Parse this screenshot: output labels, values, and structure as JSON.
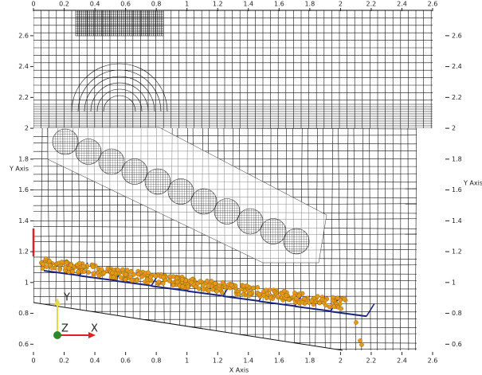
{
  "chart_data": {
    "type": "mesh",
    "xlabel": "X Axis",
    "ylabel": "Y Axis",
    "xlim": [
      0,
      2.6
    ],
    "ylim": [
      0.55,
      2.78
    ],
    "xticks": [
      0,
      0.2,
      0.4,
      0.6,
      0.8,
      1,
      1.2,
      1.4,
      1.6,
      1.8,
      2,
      2.2,
      2.4,
      2.6
    ],
    "yticks": [
      0.6,
      0.8,
      1,
      1.2,
      1.4,
      1.6,
      1.8,
      2,
      2.2,
      2.4,
      2.6
    ]
  },
  "orientation_axes": {
    "x": "X",
    "y": "Y",
    "z": "Z"
  }
}
